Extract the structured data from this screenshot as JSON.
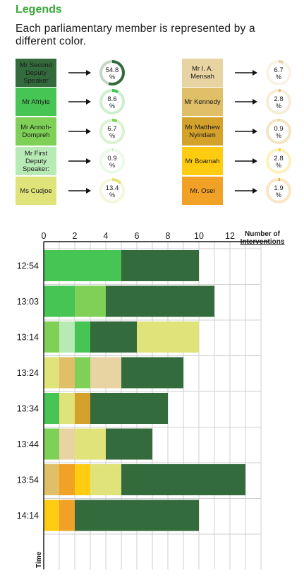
{
  "legend": {
    "title": "Legends",
    "description": "Each parliamentary member is represented by a different color.",
    "items": [
      {
        "name": "Mr Second Deputy Speaker",
        "percent": 54.8,
        "color": "#336b3c",
        "textColor": "#1a1a1a"
      },
      {
        "name": "Mr Afriyie",
        "percent": 8.6,
        "color": "#46c454"
      },
      {
        "name": "Mr Annoh-Dompreh",
        "percent": 6.7,
        "color": "#7ed057"
      },
      {
        "name": "Mr First Deputy Speaker:",
        "percent": 0.9,
        "color": "#b7eab4"
      },
      {
        "name": "Ms Cudjoe",
        "percent": 13.4,
        "color": "#e0e27a"
      },
      {
        "name": "Mr I. A. Mensah",
        "percent": 6.7,
        "color": "#e8d3a2"
      },
      {
        "name": "Mr Kennedy",
        "percent": 2.8,
        "color": "#dfc068"
      },
      {
        "name": "Mr Matthew Nyindam",
        "percent": 0.9,
        "color": "#d4a22b"
      },
      {
        "name": "Mr Boamah",
        "percent": 2.8,
        "color": "#ffcc12"
      },
      {
        "name": "Mr. Osei",
        "percent": 1.9,
        "color": "#f0a126"
      }
    ]
  },
  "chart_data": {
    "type": "bar",
    "orientation": "horizontal",
    "stacked": true,
    "xlabel": "Number of Interventions",
    "ylabel": "Time",
    "xlim": [
      0,
      14
    ],
    "xticks": [
      0,
      2,
      4,
      6,
      8,
      10,
      12
    ],
    "grid": true,
    "categories": [
      "12:54",
      "13:03",
      "13:14",
      "13:24",
      "13:34",
      "13:44",
      "13:54",
      "14:14"
    ],
    "rows": [
      [
        {
          "member": "Mr Afriyie",
          "value": 5
        },
        {
          "member": "Mr Second Deputy Speaker",
          "value": 5
        }
      ],
      [
        {
          "member": "Mr Afriyie",
          "value": 2
        },
        {
          "member": "Mr Annoh-Dompreh",
          "value": 2
        },
        {
          "member": "Mr Second Deputy Speaker",
          "value": 7
        }
      ],
      [
        {
          "member": "Mr Annoh-Dompreh",
          "value": 1
        },
        {
          "member": "Mr First Deputy Speaker:",
          "value": 1
        },
        {
          "member": "Mr Afriyie",
          "value": 1
        },
        {
          "member": "Mr Second Deputy Speaker",
          "value": 3
        },
        {
          "member": "Ms Cudjoe",
          "value": 4
        }
      ],
      [
        {
          "member": "Ms Cudjoe",
          "value": 1
        },
        {
          "member": "Mr Kennedy",
          "value": 1
        },
        {
          "member": "Mr Annoh-Dompreh",
          "value": 1
        },
        {
          "member": "Mr I. A. Mensah",
          "value": 2
        },
        {
          "member": "Mr Second Deputy Speaker",
          "value": 4
        }
      ],
      [
        {
          "member": "Mr Afriyie",
          "value": 1
        },
        {
          "member": "Ms Cudjoe",
          "value": 1
        },
        {
          "member": "Mr Matthew Nyindam",
          "value": 1
        },
        {
          "member": "Mr Second Deputy Speaker",
          "value": 5
        }
      ],
      [
        {
          "member": "Mr Annoh-Dompreh",
          "value": 1
        },
        {
          "member": "Mr I. A. Mensah",
          "value": 1
        },
        {
          "member": "Ms Cudjoe",
          "value": 2
        },
        {
          "member": "Mr Second Deputy Speaker",
          "value": 3
        }
      ],
      [
        {
          "member": "Mr Kennedy",
          "value": 1
        },
        {
          "member": "Mr. Osei",
          "value": 1
        },
        {
          "member": "Mr Boamah",
          "value": 1
        },
        {
          "member": "Ms Cudjoe",
          "value": 2
        },
        {
          "member": "Mr Second Deputy Speaker",
          "value": 8
        }
      ],
      [
        {
          "member": "Mr Boamah",
          "value": 1
        },
        {
          "member": "Mr. Osei",
          "value": 1
        },
        {
          "member": "Mr Second Deputy Speaker",
          "value": 8
        }
      ]
    ]
  }
}
